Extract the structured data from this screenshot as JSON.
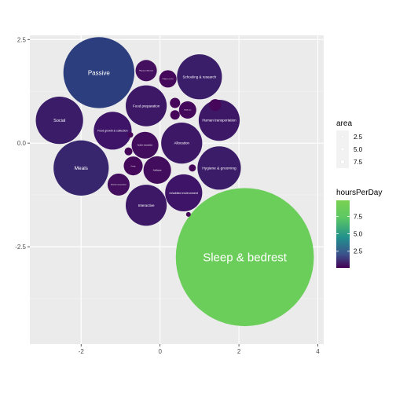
{
  "chart_data": {
    "type": "scatter",
    "subtype": "packed-bubble",
    "title": "",
    "xlabel": "",
    "ylabel": "",
    "xlim": [
      -3.3,
      4.15
    ],
    "ylim": [
      -4.85,
      2.6
    ],
    "x_ticks": [
      {
        "value": -2,
        "label": "-2"
      },
      {
        "value": 0,
        "label": "0"
      },
      {
        "value": 2,
        "label": "2"
      },
      {
        "value": 4,
        "label": "4"
      }
    ],
    "y_ticks": [
      {
        "value": 2.5,
        "label": "2.5"
      },
      {
        "value": 0,
        "label": "0.0"
      },
      {
        "value": -2.5,
        "label": "-2.5"
      }
    ],
    "grid": true,
    "panel_background": "#ebebeb",
    "grid_color": "#ffffff",
    "legend_position": "right",
    "legends": {
      "size": {
        "title": "area",
        "entries": [
          "2.5",
          "5.0",
          "7.5"
        ]
      },
      "color": {
        "title": "hoursPerDay",
        "min": 0.1,
        "max": 9.8,
        "ticks": [
          "7.5",
          "5.0",
          "2.5"
        ],
        "tick_values": [
          7.5,
          5.0,
          2.5
        ],
        "low_color": "#440154",
        "mid_color": "#21908c",
        "high_color": "#7ad151"
      }
    },
    "points": [
      {
        "label": "Sleep & bedrest",
        "x": 2.15,
        "y": -2.75,
        "r": 1.75,
        "hoursPerDay": 9.6,
        "color": "#6cce5a",
        "font": 15
      },
      {
        "label": "Passive",
        "x": -1.55,
        "y": 1.7,
        "r": 0.9,
        "hoursPerDay": 3.1,
        "color": "#2c3e7d",
        "font": 8
      },
      {
        "label": "Meals",
        "x": -2.0,
        "y": -0.6,
        "r": 0.7,
        "hoursPerDay": 2.2,
        "color": "#37266d",
        "font": 6.5
      },
      {
        "label": "Social",
        "x": -2.55,
        "y": 0.55,
        "r": 0.6,
        "hoursPerDay": 1.7,
        "color": "#3b1c68",
        "font": 5.5
      },
      {
        "label": "Schooling & research",
        "x": 1.0,
        "y": 1.6,
        "r": 0.57,
        "hoursPerDay": 1.5,
        "color": "#3a1e6a",
        "font": 4.5
      },
      {
        "label": "Human transportation",
        "x": 1.5,
        "y": 0.55,
        "r": 0.52,
        "hoursPerDay": 1.3,
        "color": "#3d1867",
        "font": 4.5
      },
      {
        "label": "Hygiene & grooming",
        "x": 1.5,
        "y": -0.6,
        "r": 0.55,
        "hoursPerDay": 1.4,
        "color": "#3b1c68",
        "font": 4.8
      },
      {
        "label": "Allocation",
        "x": 0.55,
        "y": 0.0,
        "r": 0.52,
        "hoursPerDay": 1.3,
        "color": "#3d1867",
        "font": 4.5
      },
      {
        "label": "Food preparation",
        "x": -0.35,
        "y": 0.9,
        "r": 0.52,
        "hoursPerDay": 1.3,
        "color": "#3d1867",
        "font": 4.5
      },
      {
        "label": "Food growth & collection",
        "x": -1.2,
        "y": 0.3,
        "r": 0.48,
        "hoursPerDay": 1.1,
        "color": "#3e1468",
        "font": 3.5
      },
      {
        "label": "Interactive",
        "x": -0.35,
        "y": -1.5,
        "r": 0.52,
        "hoursPerDay": 1.3,
        "color": "#3d1867",
        "font": 4.5
      },
      {
        "label": "Inhabited environment",
        "x": 0.6,
        "y": -1.2,
        "r": 0.47,
        "hoursPerDay": 1.1,
        "color": "#3e1468",
        "font": 3.7
      },
      {
        "label": "Artifacts",
        "x": -0.07,
        "y": -0.65,
        "r": 0.35,
        "hoursPerDay": 0.7,
        "color": "#430d5d",
        "font": 3
      },
      {
        "label": "Active recreation",
        "x": -0.38,
        "y": -0.05,
        "r": 0.34,
        "hoursPerDay": 0.7,
        "color": "#430d5d",
        "font": 2.6
      },
      {
        "label": "Physical child care",
        "x": -0.35,
        "y": 1.75,
        "r": 0.27,
        "hoursPerDay": 0.5,
        "color": "#440f5e",
        "font": 2.2
      },
      {
        "label": "Religious practice",
        "x": 0.2,
        "y": 1.55,
        "r": 0.22,
        "hoursPerDay": 0.4,
        "color": "#45095c",
        "font": 1.8
      },
      {
        "label": "Health care",
        "x": 0.7,
        "y": 0.8,
        "r": 0.22,
        "hoursPerDay": 0.4,
        "color": "#45095c",
        "font": 1.8
      },
      {
        "label": "Material transportation",
        "x": -1.05,
        "y": -1.0,
        "r": 0.28,
        "hoursPerDay": 0.5,
        "color": "#440f5e",
        "font": 2
      },
      {
        "label": "Energy",
        "x": -0.68,
        "y": -0.55,
        "r": 0.24,
        "hoursPerDay": 0.4,
        "color": "#45095c",
        "font": 1.8
      },
      {
        "label": "",
        "x": 0.38,
        "y": 0.97,
        "r": 0.13,
        "hoursPerDay": 0.2,
        "color": "#46075a"
      },
      {
        "label": "",
        "x": 0.38,
        "y": 0.68,
        "r": 0.12,
        "hoursPerDay": 0.2,
        "color": "#46075a"
      },
      {
        "label": "",
        "x": 1.4,
        "y": 0.92,
        "r": 0.15,
        "hoursPerDay": 0.2,
        "color": "#46075a"
      },
      {
        "label": "",
        "x": -0.8,
        "y": -0.2,
        "r": 0.1,
        "hoursPerDay": 0.1,
        "color": "#46075a"
      },
      {
        "label": "",
        "x": -0.75,
        "y": 0.2,
        "r": 0.07,
        "hoursPerDay": 0.1,
        "color": "#46075a"
      },
      {
        "label": "",
        "x": 0.82,
        "y": -0.6,
        "r": 0.09,
        "hoursPerDay": 0.1,
        "color": "#46075a"
      },
      {
        "label": "",
        "x": 0.72,
        "y": -1.72,
        "r": 0.06,
        "hoursPerDay": 0.1,
        "color": "#46075a"
      }
    ]
  }
}
